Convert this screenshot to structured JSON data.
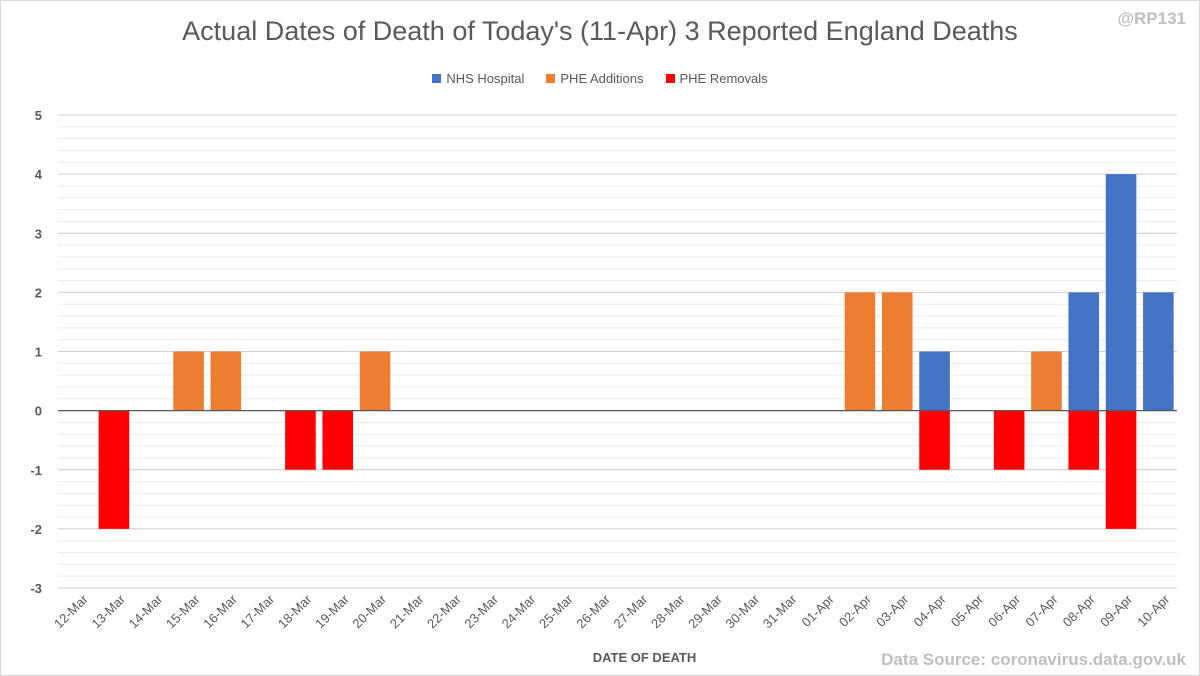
{
  "header": {
    "handle": "@RP131"
  },
  "footer": {
    "source": "Data Source: coronavirus.data.gov.uk"
  },
  "chart_data": {
    "type": "bar",
    "stacked": true,
    "title": "Actual Dates of Death of Today's (11-Apr) 3 Reported England Deaths",
    "xlabel": "DATE OF DEATH",
    "ylabel": "",
    "ylim": [
      -3,
      5
    ],
    "yticks": [
      -3,
      -2,
      -1,
      0,
      1,
      2,
      3,
      4,
      5
    ],
    "grid": true,
    "legend_position": "top",
    "categories": [
      "12-Mar",
      "13-Mar",
      "14-Mar",
      "15-Mar",
      "16-Mar",
      "17-Mar",
      "18-Mar",
      "19-Mar",
      "20-Mar",
      "21-Mar",
      "22-Mar",
      "23-Mar",
      "24-Mar",
      "25-Mar",
      "26-Mar",
      "27-Mar",
      "28-Mar",
      "29-Mar",
      "30-Mar",
      "31-Mar",
      "01-Apr",
      "02-Apr",
      "03-Apr",
      "04-Apr",
      "05-Apr",
      "06-Apr",
      "07-Apr",
      "08-Apr",
      "09-Apr",
      "10-Apr"
    ],
    "series": [
      {
        "name": "NHS Hospital",
        "color": "#4472c4",
        "values": [
          0,
          0,
          0,
          0,
          0,
          0,
          0,
          0,
          0,
          0,
          0,
          0,
          0,
          0,
          0,
          0,
          0,
          0,
          0,
          0,
          0,
          0,
          0,
          1,
          0,
          0,
          0,
          2,
          4,
          2
        ]
      },
      {
        "name": "PHE Additions",
        "color": "#ed7d31",
        "values": [
          0,
          0,
          0,
          1,
          1,
          0,
          0,
          0,
          1,
          0,
          0,
          0,
          0,
          0,
          0,
          0,
          0,
          0,
          0,
          0,
          0,
          2,
          2,
          0,
          0,
          0,
          1,
          0,
          0,
          0
        ]
      },
      {
        "name": "PHE Removals",
        "color": "#ff0000",
        "values": [
          0,
          -2,
          0,
          0,
          0,
          0,
          -1,
          -1,
          0,
          0,
          0,
          0,
          0,
          0,
          0,
          0,
          0,
          0,
          0,
          0,
          0,
          0,
          0,
          -1,
          0,
          -1,
          0,
          -1,
          -2,
          0
        ]
      }
    ]
  }
}
